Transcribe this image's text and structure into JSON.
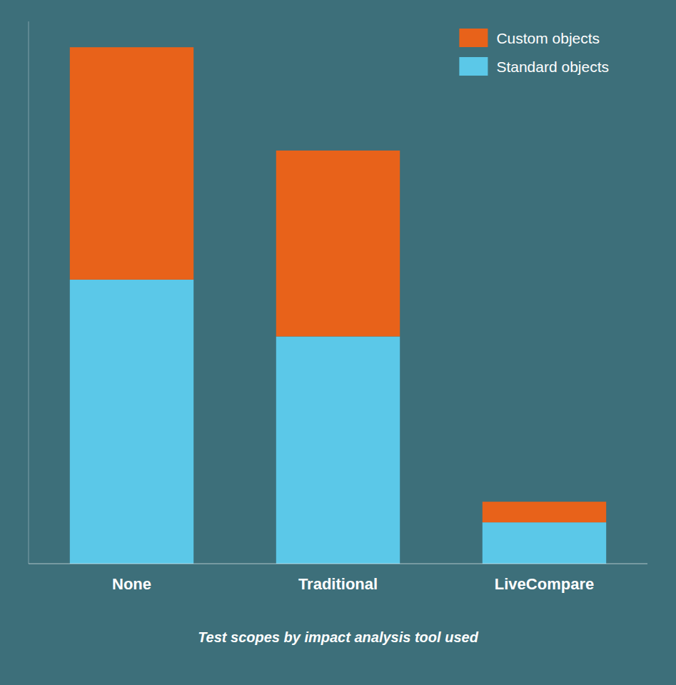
{
  "chart_data": {
    "type": "bar",
    "title": "Test scopes by impact analysis tool used",
    "categories": [
      "None",
      "Traditional",
      "LiveCompare"
    ],
    "stacked": true,
    "series": [
      {
        "name": "Standard objects",
        "color": "#5BC8E8",
        "values": [
          55,
          44,
          8
        ]
      },
      {
        "name": "Custom objects",
        "color": "#E8621A",
        "values": [
          45,
          36,
          4
        ]
      }
    ],
    "ylim": [
      0,
      105
    ],
    "tick_labels": "x",
    "legend": "upper right"
  }
}
